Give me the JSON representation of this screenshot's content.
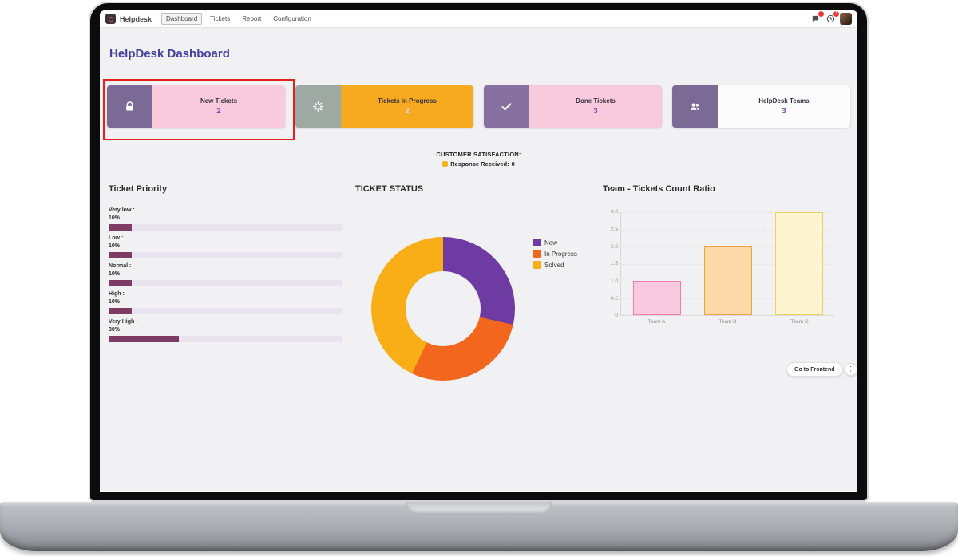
{
  "navbar": {
    "app_name": "Helpdesk",
    "menu": [
      {
        "label": "Dashboard",
        "active": true
      },
      {
        "label": "Tickets",
        "active": false
      },
      {
        "label": "Report",
        "active": false
      },
      {
        "label": "Configuration",
        "active": false
      }
    ],
    "message_badge": "1",
    "activity_badge": "1"
  },
  "page_title": "HelpDesk Dashboard",
  "cards": [
    {
      "title": "New Tickets",
      "count": "2",
      "icon": "lock-icon",
      "icon_bg": "#7b6a96",
      "body_bg": "#f9c9dc",
      "count_color": "#8247ad"
    },
    {
      "title": "Tickets In Progress",
      "count": "2",
      "icon": "spinner-icon",
      "icon_bg": "#9fa9a3",
      "body_bg": "#f7a91f",
      "count_color": "#f9c9dc"
    },
    {
      "title": "Done Tickets",
      "count": "3",
      "icon": "check-icon",
      "icon_bg": "#8671a1",
      "body_bg": "#f9c9dc",
      "count_color": "#8247ad"
    },
    {
      "title": "HelpDesk Teams",
      "count": "3",
      "icon": "users-icon",
      "icon_bg": "#7b6a96",
      "body_bg": "#fcfcfc",
      "count_color": "#8247ad"
    }
  ],
  "satisfaction": {
    "heading": "CUSTOMER SATISFACTION:",
    "label": "Response Received:",
    "value": "0"
  },
  "priority_panel": {
    "title": "Ticket Priority",
    "bar_color": "#7d3c64",
    "track_color": "#e9e3ee",
    "items": [
      {
        "label": "Very low :",
        "pct": "10%",
        "value": 10
      },
      {
        "label": "Low :",
        "pct": "10%",
        "value": 10
      },
      {
        "label": "Normal :",
        "pct": "10%",
        "value": 10
      },
      {
        "label": "High :",
        "pct": "10%",
        "value": 10
      },
      {
        "label": "Very High :",
        "pct": "30%",
        "value": 30
      }
    ]
  },
  "status_panel": {
    "title": "TICKET STATUS",
    "chart": {
      "type": "doughnut",
      "labels": [
        "New",
        "In Progress",
        "Solved"
      ],
      "values": [
        2,
        2,
        3
      ],
      "colors": [
        "#6e3ba3",
        "#f3661d",
        "#f9ae17"
      ],
      "legend_position": "right"
    }
  },
  "team_panel": {
    "title": "Team - Tickets Count Ratio",
    "chart": {
      "type": "bar",
      "categories": [
        "Team A",
        "Team B",
        "Team C"
      ],
      "values": [
        1,
        2,
        3
      ],
      "fills": [
        "#f9cadf",
        "#fbd9a8",
        "#fdf4d0"
      ],
      "borders": [
        "#f07fb0",
        "#f2a045",
        "#ecd06a"
      ],
      "yticks": [
        "3.0",
        "2.5",
        "2.0",
        "1.5",
        "1.0",
        "0.5",
        "0"
      ],
      "ymax": 3,
      "ylim": [
        0,
        3
      ],
      "grid": true
    }
  },
  "frontend_button": {
    "label": "Go to Frontend"
  }
}
